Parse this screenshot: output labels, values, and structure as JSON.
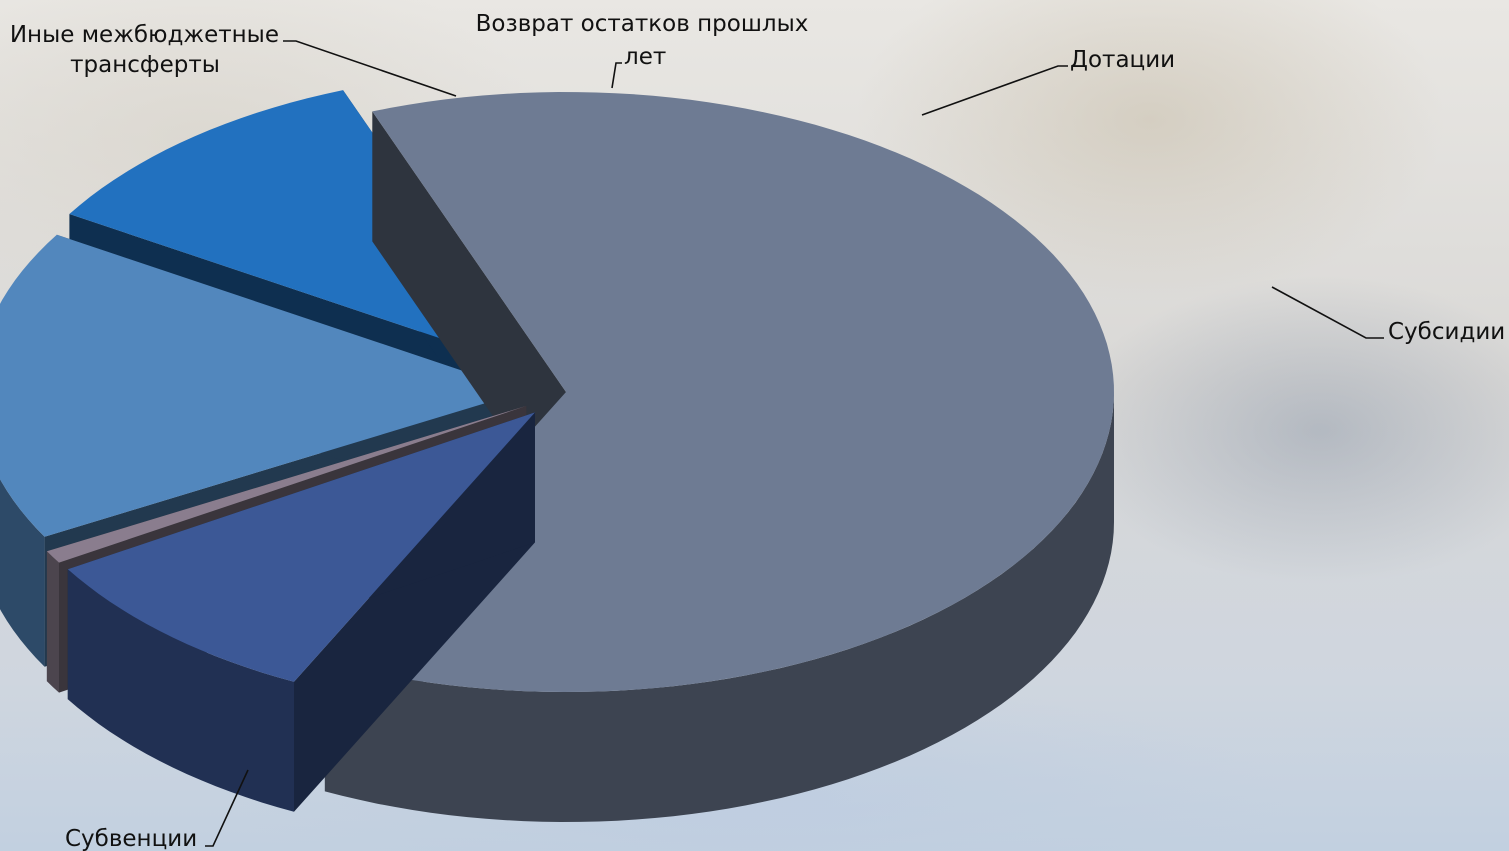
{
  "chart_data": {
    "type": "pie",
    "style": "3d-exploded",
    "title": "",
    "categories": [
      "Субвенции",
      "Иные межбюджетные трансферты",
      "Возврат остатков прошлых лет",
      "Дотации",
      "Субсидии"
    ],
    "values": [
      63.0,
      9.0,
      0.7,
      16.8,
      10.5
    ],
    "colors": [
      "#6e7b93",
      "#3c5896",
      "#8a7d8e",
      "#5287bd",
      "#2271bf"
    ],
    "legend": "none",
    "labels": {
      "subventions": "Субвенции",
      "other_transfers_line1": "Иные межбюджетные",
      "other_transfers_line2": "трансферты",
      "returns_line1": "Возврат остатков прошлых",
      "returns_line2": "лет",
      "grants": "Дотации",
      "subsidies": "Субсидии"
    }
  }
}
